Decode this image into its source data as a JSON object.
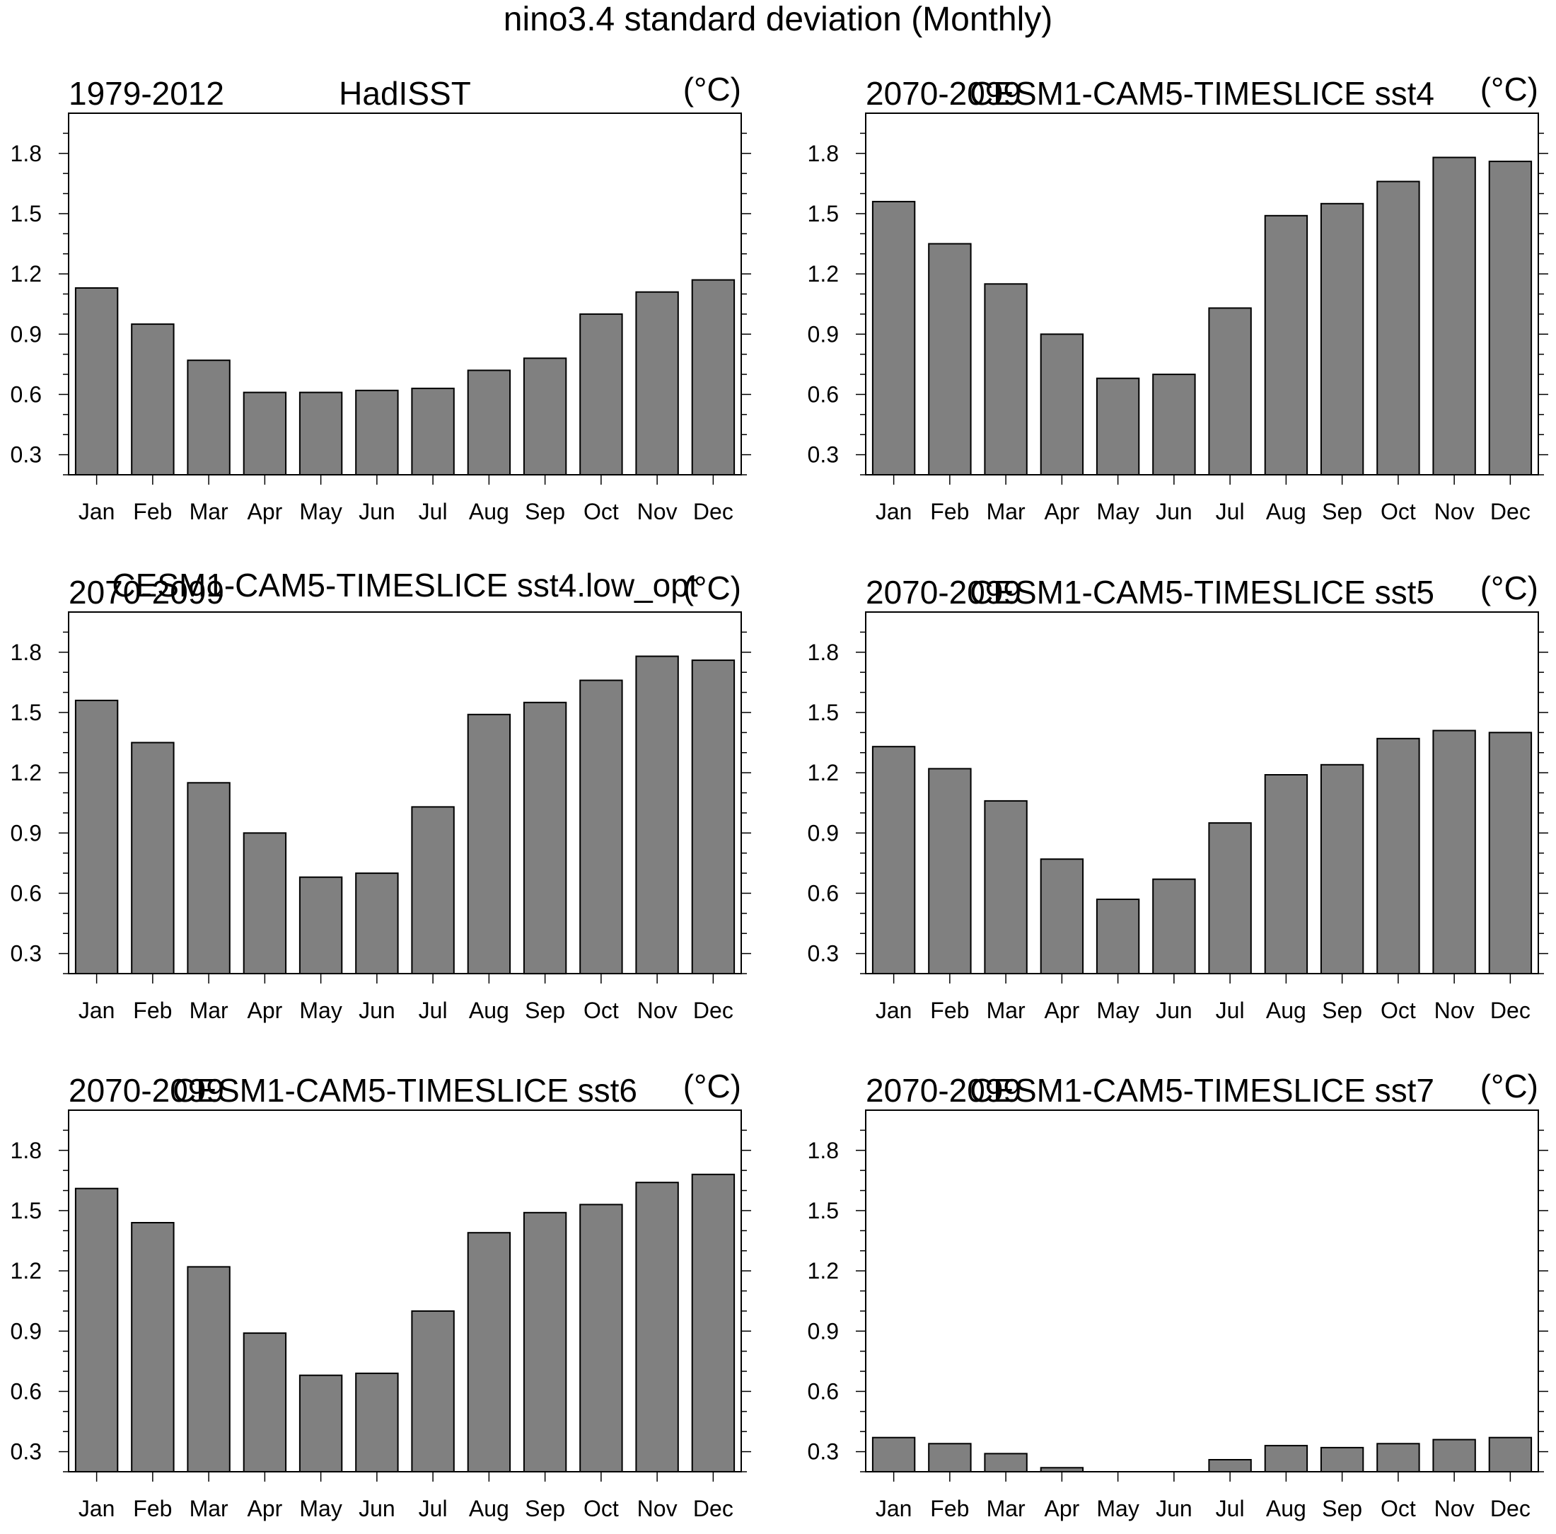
{
  "figure": {
    "title": "nino3.4 standard deviation (Monthly)"
  },
  "colors": {
    "bar_fill": "#808080",
    "bar_stroke": "#000000",
    "axis": "#000000"
  },
  "chart_data": [
    {
      "type": "bar",
      "left_title": "1979-2012",
      "center_title": "HadISST",
      "units": "(°C)",
      "categories": [
        "Jan",
        "Feb",
        "Mar",
        "Apr",
        "May",
        "Jun",
        "Jul",
        "Aug",
        "Sep",
        "Oct",
        "Nov",
        "Dec"
      ],
      "values": [
        1.13,
        0.95,
        0.77,
        0.61,
        0.61,
        0.62,
        0.63,
        0.72,
        0.78,
        1.0,
        1.11,
        1.17
      ],
      "yticks": [
        "0.3",
        "0.6",
        "0.9",
        "1.2",
        "1.5",
        "1.8"
      ],
      "ylim": [
        0.2,
        2.0
      ]
    },
    {
      "type": "bar",
      "left_title": "2070-2099",
      "center_title": "CESM1-CAM5-TIMESLICE sst4",
      "units": "(°C)",
      "categories": [
        "Jan",
        "Feb",
        "Mar",
        "Apr",
        "May",
        "Jun",
        "Jul",
        "Aug",
        "Sep",
        "Oct",
        "Nov",
        "Dec"
      ],
      "values": [
        1.56,
        1.35,
        1.15,
        0.9,
        0.68,
        0.7,
        1.03,
        1.49,
        1.55,
        1.66,
        1.78,
        1.76
      ],
      "yticks": [
        "0.3",
        "0.6",
        "0.9",
        "1.2",
        "1.5",
        "1.8"
      ],
      "ylim": [
        0.2,
        2.0
      ]
    },
    {
      "type": "bar",
      "left_title": "2070-2099",
      "center_title": "CESM1-CAM5-TIMESLICE sst4.low_opt",
      "units": "(°C)",
      "categories": [
        "Jan",
        "Feb",
        "Mar",
        "Apr",
        "May",
        "Jun",
        "Jul",
        "Aug",
        "Sep",
        "Oct",
        "Nov",
        "Dec"
      ],
      "values": [
        1.56,
        1.35,
        1.15,
        0.9,
        0.68,
        0.7,
        1.03,
        1.49,
        1.55,
        1.66,
        1.78,
        1.76
      ],
      "yticks": [
        "0.3",
        "0.6",
        "0.9",
        "1.2",
        "1.5",
        "1.8"
      ],
      "ylim": [
        0.2,
        2.0
      ]
    },
    {
      "type": "bar",
      "left_title": "2070-2099",
      "center_title": "CESM1-CAM5-TIMESLICE sst5",
      "units": "(°C)",
      "categories": [
        "Jan",
        "Feb",
        "Mar",
        "Apr",
        "May",
        "Jun",
        "Jul",
        "Aug",
        "Sep",
        "Oct",
        "Nov",
        "Dec"
      ],
      "values": [
        1.33,
        1.22,
        1.06,
        0.77,
        0.57,
        0.67,
        0.95,
        1.19,
        1.24,
        1.37,
        1.41,
        1.4
      ],
      "yticks": [
        "0.3",
        "0.6",
        "0.9",
        "1.2",
        "1.5",
        "1.8"
      ],
      "ylim": [
        0.2,
        2.0
      ]
    },
    {
      "type": "bar",
      "left_title": "2070-2099",
      "center_title": "CESM1-CAM5-TIMESLICE sst6",
      "units": "(°C)",
      "categories": [
        "Jan",
        "Feb",
        "Mar",
        "Apr",
        "May",
        "Jun",
        "Jul",
        "Aug",
        "Sep",
        "Oct",
        "Nov",
        "Dec"
      ],
      "values": [
        1.61,
        1.44,
        1.22,
        0.89,
        0.68,
        0.69,
        1.0,
        1.39,
        1.49,
        1.53,
        1.64,
        1.68
      ],
      "yticks": [
        "0.3",
        "0.6",
        "0.9",
        "1.2",
        "1.5",
        "1.8"
      ],
      "ylim": [
        0.2,
        2.0
      ]
    },
    {
      "type": "bar",
      "left_title": "2070-2099",
      "center_title": "CESM1-CAM5-TIMESLICE sst7",
      "units": "(°C)",
      "categories": [
        "Jan",
        "Feb",
        "Mar",
        "Apr",
        "May",
        "Jun",
        "Jul",
        "Aug",
        "Sep",
        "Oct",
        "Nov",
        "Dec"
      ],
      "values": [
        0.37,
        0.34,
        0.29,
        0.22,
        0.18,
        0.18,
        0.26,
        0.33,
        0.32,
        0.34,
        0.36,
        0.37
      ],
      "yticks": [
        "0.3",
        "0.6",
        "0.9",
        "1.2",
        "1.5",
        "1.8"
      ],
      "ylim": [
        0.2,
        2.0
      ]
    }
  ]
}
